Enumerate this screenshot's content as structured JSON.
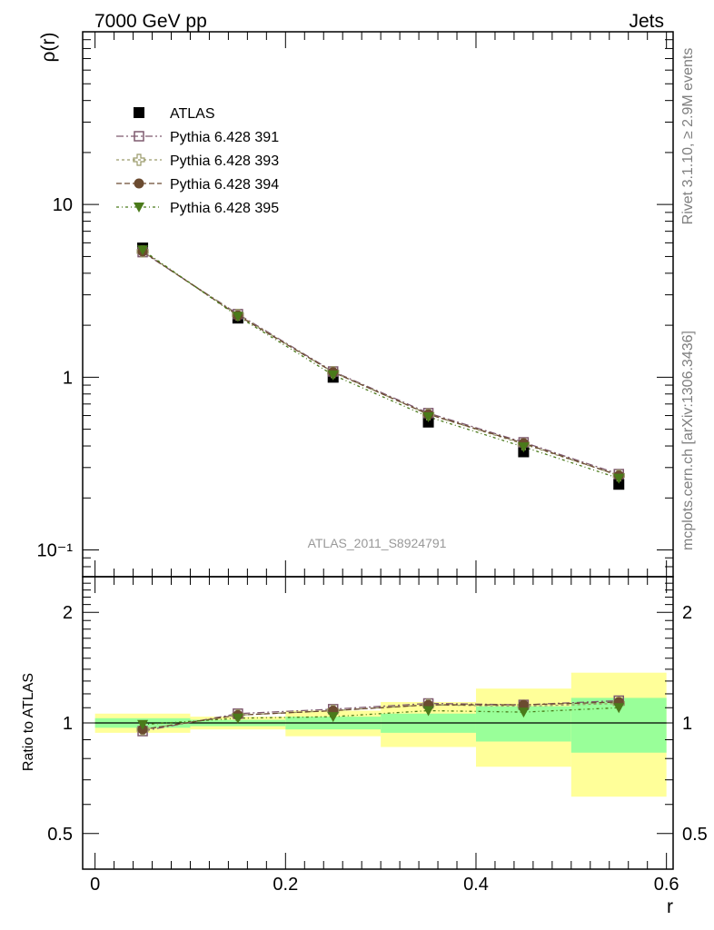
{
  "header": {
    "energy": "7000 GeV pp",
    "process": "Jets"
  },
  "side_labels": {
    "rivet": "Rivet 3.1.10, ≥ 2.9M events",
    "source": "mcplots.cern.ch [arXiv:1306.3436]"
  },
  "chart_data": [
    {
      "type": "line",
      "panel": "main",
      "ylabel": "ρ(r)",
      "xlabel": "",
      "yscale": "log",
      "xlim": [
        -0.013,
        0.607
      ],
      "ylim": [
        0.07,
        100
      ],
      "y_ticks": [
        {
          "value": 0.1,
          "label": "10⁻¹"
        },
        {
          "value": 1,
          "label": "1"
        },
        {
          "value": 10,
          "label": "10"
        }
      ],
      "annotation": "ATLAS_2011_S8924791",
      "x": [
        0.05,
        0.15,
        0.25,
        0.35,
        0.45,
        0.55
      ],
      "series": [
        {
          "name": "ATLAS",
          "marker": "square",
          "color": "#000000",
          "line": false,
          "values": [
            5.6,
            2.2,
            1.0,
            0.55,
            0.37,
            0.24
          ]
        },
        {
          "name": "Pythia 6.428 391",
          "marker": "open-square",
          "color": "#7f5a6f",
          "line": true,
          "values": [
            5.3,
            2.32,
            1.08,
            0.62,
            0.42,
            0.275
          ]
        },
        {
          "name": "Pythia 6.428 393",
          "marker": "open-cross",
          "color": "#9a9a6a",
          "line": true,
          "values": [
            5.35,
            2.3,
            1.07,
            0.61,
            0.41,
            0.27
          ]
        },
        {
          "name": "Pythia 6.428 394",
          "marker": "circle",
          "color": "#6b4b30",
          "line": true,
          "values": [
            5.35,
            2.28,
            1.07,
            0.61,
            0.415,
            0.27
          ]
        },
        {
          "name": "Pythia 6.428 395",
          "marker": "triangle-down",
          "color": "#4a7a1a",
          "line": true,
          "values": [
            5.45,
            2.25,
            1.03,
            0.59,
            0.395,
            0.26
          ]
        }
      ],
      "legend_position": "top-left"
    },
    {
      "type": "line",
      "panel": "ratio",
      "ylabel": "Ratio to ATLAS",
      "xlabel": "r",
      "xlim": [
        -0.013,
        0.607
      ],
      "ylim": [
        0.4,
        2.5
      ],
      "x_ticks": [
        0,
        0.2,
        0.4,
        0.6
      ],
      "y_ticks": [
        0.5,
        1,
        2
      ],
      "bands": {
        "bin_edges": [
          0.0,
          0.1,
          0.2,
          0.3,
          0.4,
          0.5,
          0.6
        ],
        "stat_low": [
          0.97,
          0.98,
          0.96,
          0.94,
          0.89,
          0.83
        ],
        "stat_high": [
          1.03,
          1.02,
          1.04,
          1.06,
          1.11,
          1.17
        ],
        "total_low": [
          0.94,
          0.96,
          0.92,
          0.86,
          0.76,
          0.63
        ],
        "total_high": [
          1.06,
          1.04,
          1.08,
          1.14,
          1.24,
          1.37
        ],
        "stat_color": "#99ff99",
        "total_color": "#ffff99"
      },
      "x": [
        0.05,
        0.15,
        0.25,
        0.35,
        0.45,
        0.55
      ],
      "series": [
        {
          "name": "Pythia 6.428 391",
          "values": [
            0.95,
            1.06,
            1.09,
            1.13,
            1.12,
            1.15
          ]
        },
        {
          "name": "Pythia 6.428 393",
          "values": [
            0.96,
            1.05,
            1.08,
            1.12,
            1.11,
            1.13
          ]
        },
        {
          "name": "Pythia 6.428 394",
          "values": [
            0.96,
            1.05,
            1.08,
            1.12,
            1.12,
            1.14
          ]
        },
        {
          "name": "Pythia 6.428 395",
          "values": [
            0.99,
            1.03,
            1.04,
            1.08,
            1.07,
            1.1
          ]
        }
      ]
    }
  ]
}
